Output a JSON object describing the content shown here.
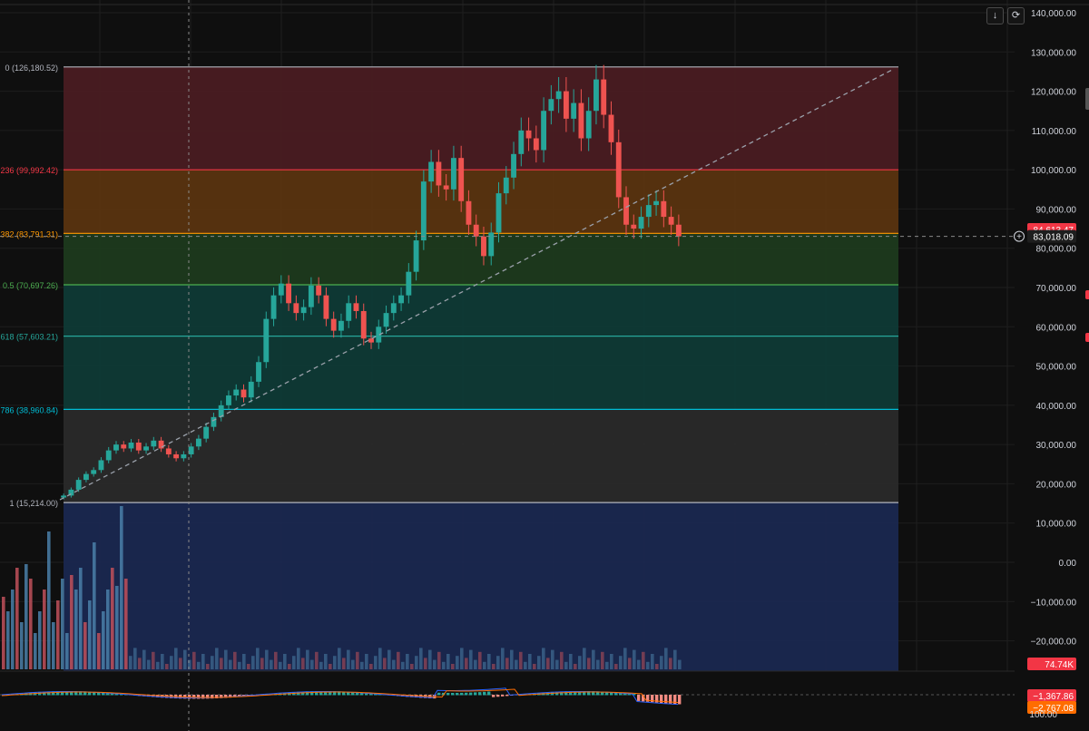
{
  "toolbar": {
    "download_icon": "arrow-down-icon",
    "refresh_icon": "refresh-icon"
  },
  "colors": {
    "background": "#0f0f0f",
    "grid": "#1f1f1f",
    "up": "#26a69a",
    "down": "#ef5350",
    "fib0": "#b2b5be",
    "fib236": "#f23645",
    "fib382": "#ff9800",
    "fib5": "#4caf50",
    "fib618": "#089981",
    "fib786": "#00bcd4",
    "fib1": "#b2b5be",
    "macd": "#2962ff",
    "signal": "#ff6d00"
  },
  "chart_data": {
    "type": "candlestick",
    "y_ticks": [
      "140,000.00",
      "130,000.00",
      "120,000.00",
      "110,000.00",
      "100,000.00",
      "90,000.00",
      "80,000.00",
      "70,000.00",
      "60,000.00",
      "50,000.00",
      "40,000.00",
      "30,000.00",
      "20,000.00",
      "10,000.00",
      "0.00",
      "−10,000.00",
      "−20,000.00"
    ],
    "ylim": [
      -27000,
      140000
    ],
    "fib_levels": [
      {
        "label": "0 (126,180.52)",
        "value": 126180.52,
        "color": "#b2b5be",
        "fill": "#4a1c22"
      },
      {
        "label": "236 (99,992.42)",
        "value": 99992.42,
        "color": "#f23645",
        "fill": "#5a3410"
      },
      {
        "label": "382 (83,791.31)",
        "value": 83791.31,
        "color": "#ff9800",
        "fill": "#1d3a1d"
      },
      {
        "label": "0.5 (70,697.26)",
        "value": 70697.26,
        "color": "#4caf50",
        "fill": "#0f3a36"
      },
      {
        "label": "618 (57,603.21)",
        "value": 57603.21,
        "color": "#26a69a",
        "fill": "#0f3a36"
      },
      {
        "label": "786 (38,960.84)",
        "value": 38960.84,
        "color": "#00bcd4",
        "fill": "#2a2a2a"
      },
      {
        "label": "1 (15,214.00)",
        "value": 15214.0,
        "color": "#b2b5be",
        "fill": "#1a2850"
      }
    ],
    "price_path": [
      16500,
      17000,
      18500,
      21000,
      22500,
      23500,
      26000,
      28500,
      30000,
      29000,
      30500,
      28500,
      29500,
      31000,
      29000,
      27500,
      26500,
      27500,
      29500,
      31500,
      34500,
      37000,
      40000,
      42500,
      44000,
      42000,
      46000,
      51000,
      62000,
      68000,
      71000,
      66000,
      63500,
      65000,
      70500,
      68000,
      62000,
      59000,
      61500,
      66000,
      64000,
      57000,
      56000,
      60000,
      63500,
      66000,
      68000,
      74000,
      82000,
      97000,
      102000,
      96000,
      95000,
      103000,
      92000,
      86000,
      83000,
      78000,
      84000,
      94000,
      98000,
      104000,
      110000,
      108000,
      105000,
      115000,
      118000,
      120000,
      113000,
      117000,
      108000,
      115000,
      123000,
      114000,
      107000,
      93000,
      86000,
      85000,
      88000,
      91000,
      92000,
      88000,
      86000,
      83018
    ],
    "last_price": "83,018.09",
    "price_tag_top": "84,613.47",
    "volume_label": "74.74K",
    "macd_label": "−1,367.86",
    "macd_signal_label": "−2,767.08",
    "osc_top_label": "100.00"
  }
}
